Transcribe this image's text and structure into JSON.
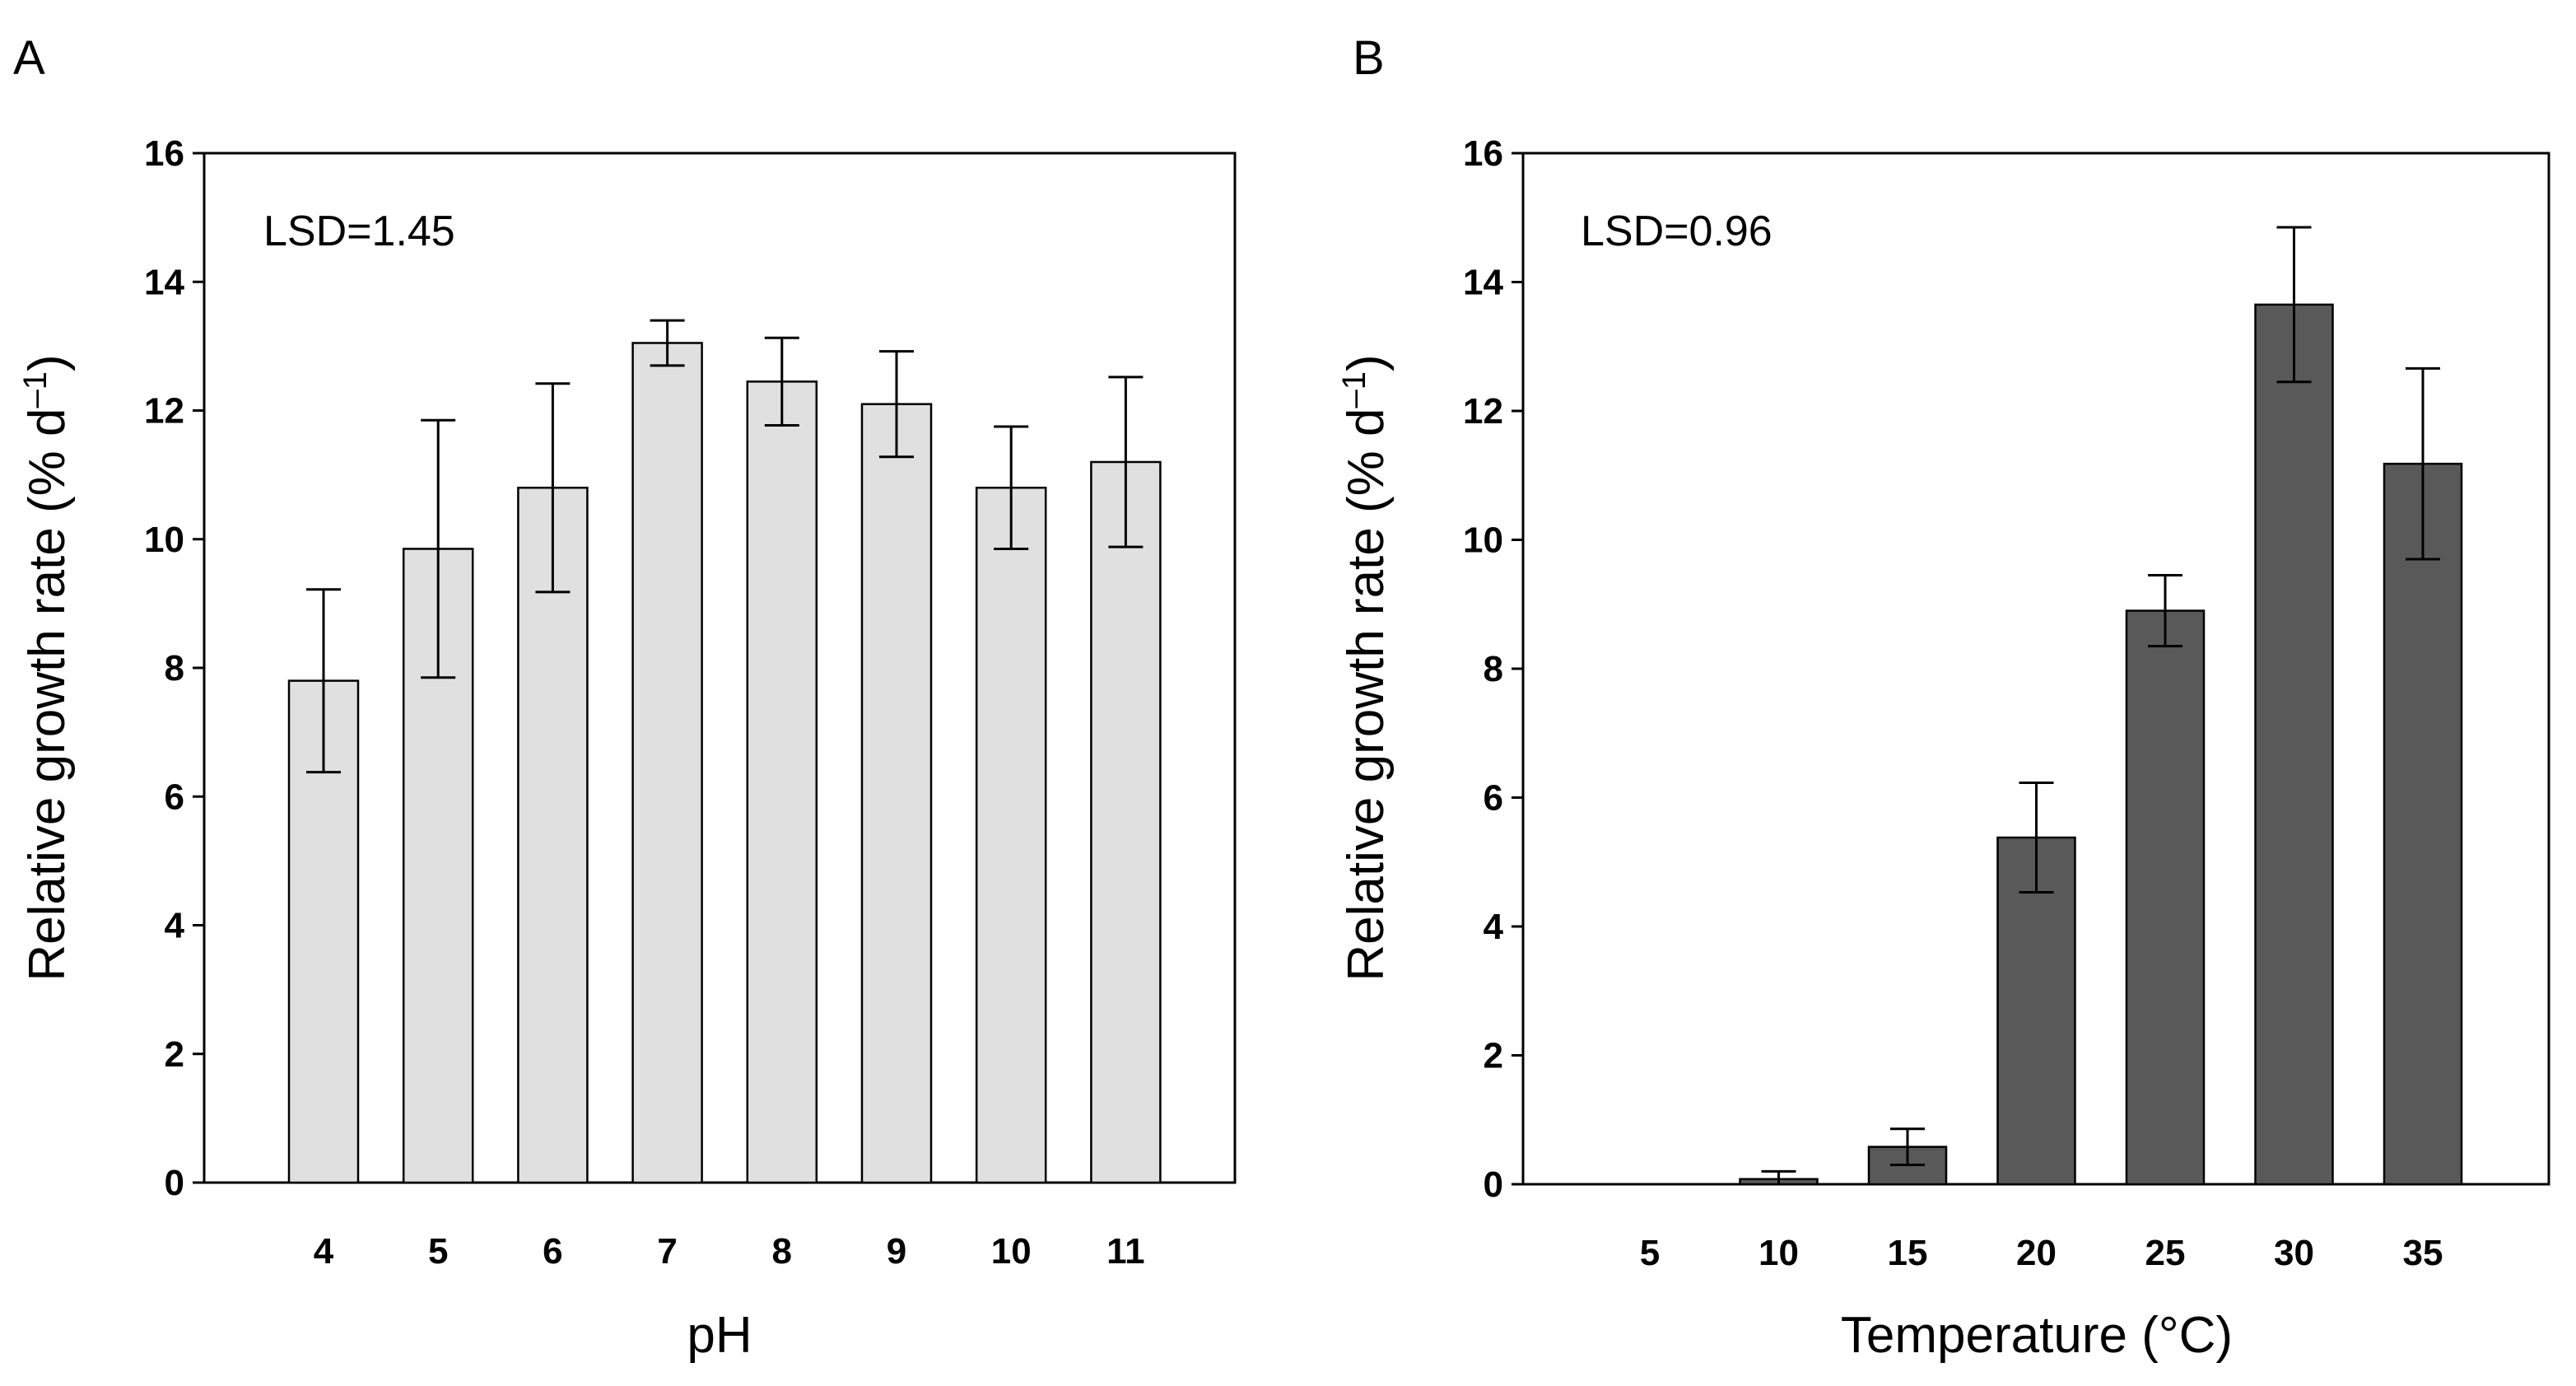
{
  "chart_data": [
    {
      "type": "bar",
      "panel": "A",
      "categories": [
        "4",
        "5",
        "6",
        "7",
        "8",
        "9",
        "10",
        "11"
      ],
      "values": [
        7.8,
        9.85,
        10.8,
        13.05,
        12.45,
        12.1,
        10.8,
        11.2
      ],
      "errors": [
        1.42,
        2.0,
        1.62,
        0.35,
        0.68,
        0.82,
        0.95,
        1.32
      ],
      "bar_color": "#e0e0e0",
      "xlabel": "pH",
      "ylabel": "Relative growth rate (% d",
      "ylabel_sup": "–1",
      "ylabel_close": ")",
      "ylim": [
        0,
        16
      ],
      "yticks": [
        "0",
        "2",
        "4",
        "6",
        "8",
        "10",
        "12",
        "14",
        "16"
      ],
      "annotation": "LSD=1.45"
    },
    {
      "type": "bar",
      "panel": "B",
      "categories": [
        "5",
        "10",
        "15",
        "20",
        "25",
        "30",
        "35"
      ],
      "values": [
        0,
        0.08,
        0.58,
        5.38,
        8.9,
        13.65,
        11.18
      ],
      "errors": [
        0,
        0.12,
        0.28,
        0.85,
        0.55,
        1.2,
        1.48
      ],
      "bar_color": "#595959",
      "xlabel": "Temperature (°C)",
      "ylabel": "Relative growth rate (% d",
      "ylabel_sup": "–1",
      "ylabel_close": ")",
      "ylim": [
        0,
        16
      ],
      "yticks": [
        "0",
        "2",
        "4",
        "6",
        "8",
        "10",
        "12",
        "14",
        "16"
      ],
      "annotation": "LSD=0.96"
    }
  ]
}
